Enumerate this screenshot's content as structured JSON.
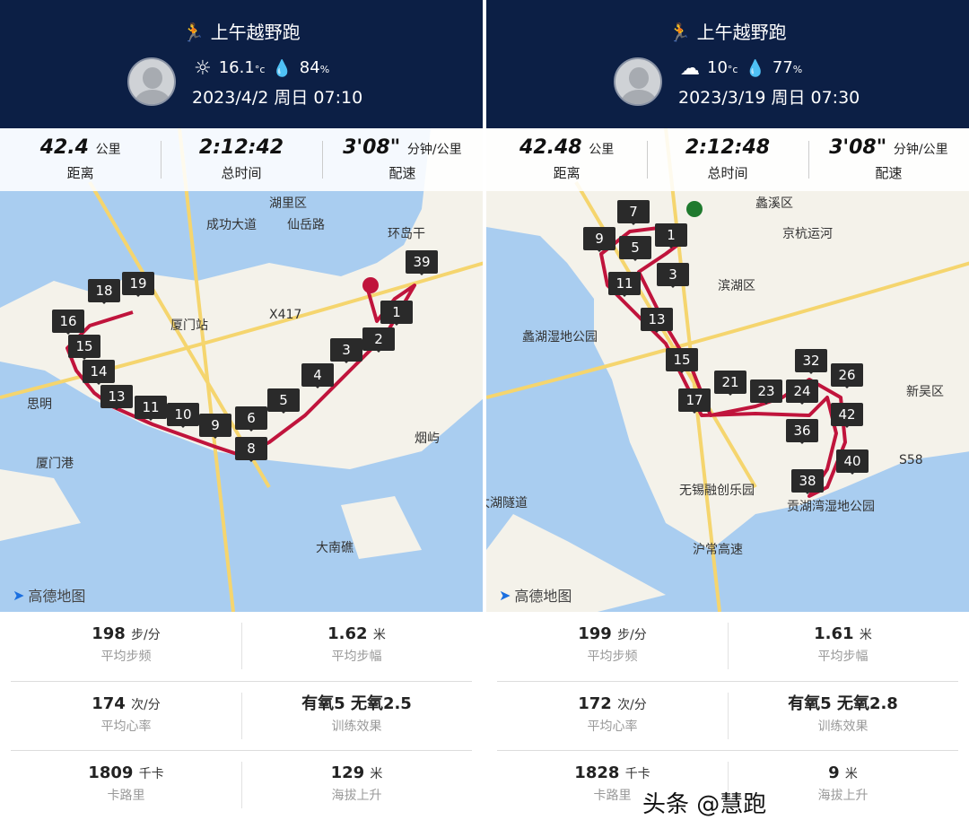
{
  "colors": {
    "header": "#0c1f45",
    "route": "#c0143c",
    "water": "#a9cdf0",
    "land": "#f4f2ea"
  },
  "panels": [
    {
      "title": "上午越野跑",
      "weather_icon": "sun-icon",
      "temp": "16.1",
      "temp_unit": "°c",
      "humidity": "84",
      "humidity_unit": "%",
      "date": "2023/4/2 周日 07:10",
      "stats": [
        {
          "value": "42.4",
          "unit": "公里",
          "label": "距离"
        },
        {
          "value": "2:12:42",
          "unit": "",
          "label": "总时间"
        },
        {
          "value": "3'08\"",
          "unit": "分钟/公里",
          "label": "配速"
        }
      ],
      "markers": [
        "1",
        "2",
        "3",
        "4",
        "5",
        "6",
        "8",
        "9",
        "10",
        "11",
        "13",
        "14",
        "15",
        "16",
        "18",
        "19",
        "39"
      ],
      "map_labels": [
        "湖里区",
        "成功大道",
        "仙岳路",
        "厦门站",
        "X417",
        "环岛干",
        "厦门港",
        "烟屿",
        "大南礁",
        "思明"
      ],
      "map_logo": "高德地图",
      "details": [
        [
          {
            "value": "198",
            "unit": "步/分",
            "label": "平均步频"
          },
          {
            "value": "1.62",
            "unit": "米",
            "label": "平均步幅"
          }
        ],
        [
          {
            "value": "174",
            "unit": "次/分",
            "label": "平均心率"
          },
          {
            "value": "有氧5 无氧2.5",
            "unit": "",
            "label": "训练效果"
          }
        ],
        [
          {
            "value": "1809",
            "unit": "千卡",
            "label": "卡路里"
          },
          {
            "value": "129",
            "unit": "米",
            "label": "海拔上升"
          }
        ]
      ]
    },
    {
      "title": "上午越野跑",
      "weather_icon": "cloud-icon",
      "temp": "10",
      "temp_unit": "°c",
      "humidity": "77",
      "humidity_unit": "%",
      "date": "2023/3/19 周日 07:30",
      "stats": [
        {
          "value": "42.48",
          "unit": "公里",
          "label": "距离"
        },
        {
          "value": "2:12:48",
          "unit": "",
          "label": "总时间"
        },
        {
          "value": "3'08\"",
          "unit": "分钟/公里",
          "label": "配速"
        }
      ],
      "markers": [
        "1",
        "3",
        "5",
        "7",
        "9",
        "11",
        "13",
        "15",
        "17",
        "21",
        "23",
        "24",
        "26",
        "32",
        "36",
        "38",
        "40",
        "42"
      ],
      "map_labels": [
        "滨湖区",
        "蠡湖湿地公园",
        "京杭运河",
        "新吴区",
        "无锡融创乐园",
        "贡湖湾湿地公园",
        "太湖隧道",
        "沪常高速",
        "蠡溪区",
        "S58"
      ],
      "map_logo": "高德地图",
      "details": [
        [
          {
            "value": "199",
            "unit": "步/分",
            "label": "平均步频"
          },
          {
            "value": "1.61",
            "unit": "米",
            "label": "平均步幅"
          }
        ],
        [
          {
            "value": "172",
            "unit": "次/分",
            "label": "平均心率"
          },
          {
            "value": "有氧5 无氧2.8",
            "unit": "",
            "label": "训练效果"
          }
        ],
        [
          {
            "value": "1828",
            "unit": "千卡",
            "label": "卡路里"
          },
          {
            "value": "9",
            "unit": "米",
            "label": "海拔上升"
          }
        ]
      ]
    }
  ],
  "watermark": "头条 @慧跑"
}
